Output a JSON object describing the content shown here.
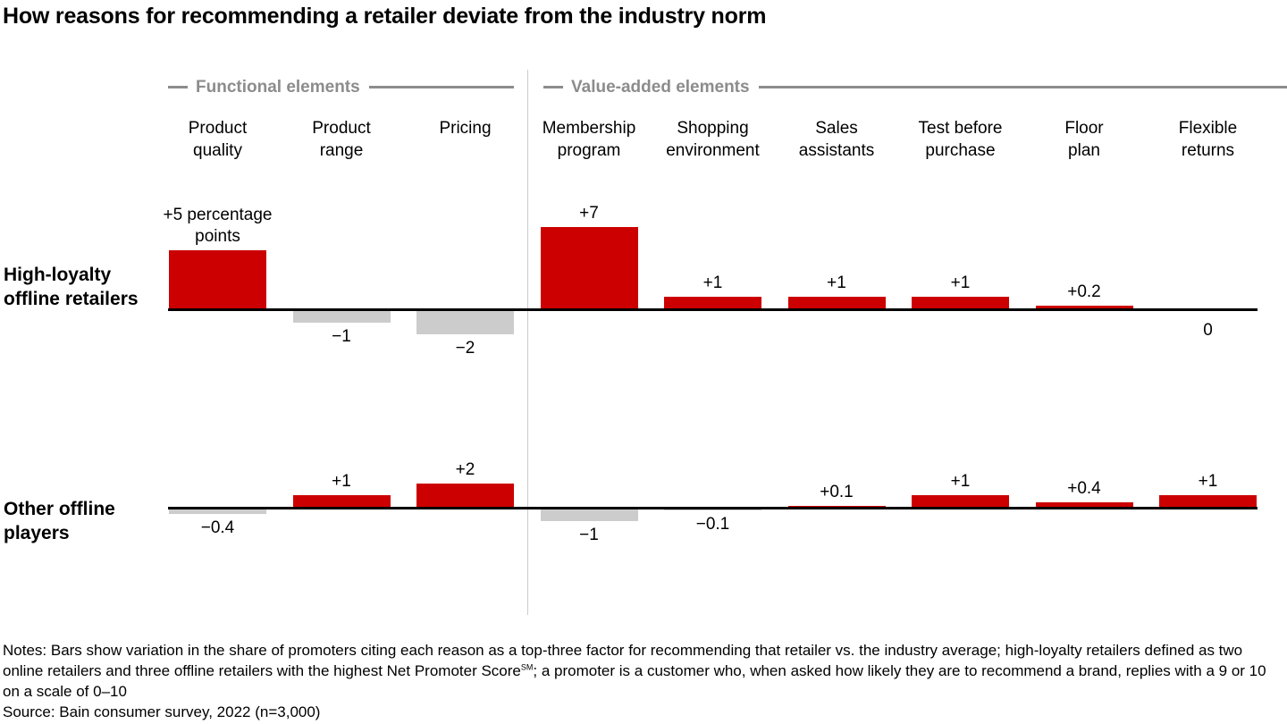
{
  "title": "How reasons for recommending a retailer deviate from the industry norm",
  "chart_data": {
    "type": "bar",
    "value_unit": "percentage points deviation vs. industry average",
    "groups": [
      {
        "label": "Functional elements"
      },
      {
        "label": "Value-added elements"
      }
    ],
    "categories": [
      "Product quality",
      "Product range",
      "Pricing",
      "Membership program",
      "Shopping environment",
      "Sales assistants",
      "Test before purchase",
      "Floor plan",
      "Flexible returns"
    ],
    "category_lines": [
      [
        "Product",
        "quality"
      ],
      [
        "Product",
        "range"
      ],
      [
        "Pricing"
      ],
      [
        "Membership",
        "program"
      ],
      [
        "Shopping",
        "environment"
      ],
      [
        "Sales",
        "assistants"
      ],
      [
        "Test before",
        "purchase"
      ],
      [
        "Floor",
        "plan"
      ],
      [
        "Flexible",
        "returns"
      ]
    ],
    "category_group": [
      0,
      0,
      0,
      1,
      1,
      1,
      1,
      1,
      1
    ],
    "series": [
      {
        "name": "High-loyalty offline retailers",
        "name_lines": [
          "High-loyalty",
          "offline retailers"
        ],
        "values": [
          5,
          -1,
          -2,
          7,
          1,
          1,
          1,
          0.2,
          0
        ],
        "value_labels": [
          "+5 percentage points",
          "−1",
          "−2",
          "+7",
          "+1",
          "+1",
          "+1",
          "+0.2",
          "0"
        ]
      },
      {
        "name": "Other offline players",
        "name_lines": [
          "Other offline",
          "players"
        ],
        "values": [
          -0.4,
          1,
          2,
          -1,
          -0.1,
          0.1,
          1,
          0.4,
          1
        ],
        "value_labels": [
          "−0.4",
          "+1",
          "+2",
          "−1",
          "−0.1",
          "+0.1",
          "+1",
          "+0.4",
          "+1"
        ]
      }
    ],
    "colors": {
      "positive_bar": "#cc0000",
      "negative_bar": "#cccccc",
      "baseline": "#000000",
      "group_header": "#8c8c8c",
      "divider": "#cccccc"
    },
    "layout_hints": {
      "orientation": "vertical bars, one zero-baseline per series row",
      "grid": false,
      "axes": "no numeric axis; values labeled on bars",
      "legend": "series names as row labels at left"
    }
  },
  "notes": {
    "before_sm": "Notes: Bars show variation in the share of promoters citing each reason as a top-three factor for recommending that retailer vs. the industry average; high-loyalty retailers defined as two online retailers and three offline retailers with the highest Net Promoter Score",
    "sm": "SM",
    "after_sm": "; a promoter is a customer who, when asked how likely they are to recommend a brand, replies with a 9 or 10 on a scale of 0–10",
    "source": "Source: Bain consumer survey, 2022 (n=3,000)"
  }
}
